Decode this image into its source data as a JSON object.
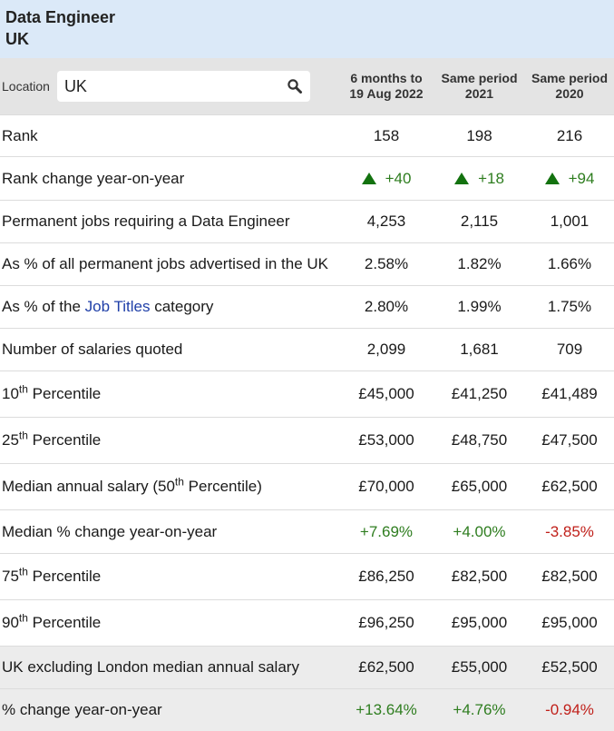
{
  "header": {
    "title": "Data Engineer",
    "subtitle": "UK"
  },
  "location": {
    "label": "Location",
    "value": "UK",
    "icon": "search-icon"
  },
  "columns": [
    {
      "line1": "6 months to",
      "line2": "19 Aug 2022"
    },
    {
      "line1": "Same period",
      "line2": "2021"
    },
    {
      "line1": "Same period",
      "line2": "2020"
    }
  ],
  "rows": {
    "rank": {
      "label": "Rank",
      "values": [
        "158",
        "198",
        "216"
      ]
    },
    "rank_change": {
      "label": "Rank change year-on-year",
      "values": [
        "+40",
        "+18",
        "+94"
      ]
    },
    "perm_jobs": {
      "label": "Permanent jobs requiring a Data Engineer",
      "values": [
        "4,253",
        "2,115",
        "1,001"
      ]
    },
    "pct_all": {
      "label": "As % of all permanent jobs advertised in the UK",
      "values": [
        "2.58%",
        "1.82%",
        "1.66%"
      ]
    },
    "pct_category": {
      "prefix": "As % of the ",
      "link": "Job Titles",
      "suffix": " category",
      "values": [
        "2.80%",
        "1.99%",
        "1.75%"
      ]
    },
    "num_salaries": {
      "label": "Number of salaries quoted",
      "values": [
        "2,099",
        "1,681",
        "709"
      ]
    },
    "p10": {
      "num": "10",
      "sup": "th",
      "text": " Percentile",
      "values": [
        "£45,000",
        "£41,250",
        "£41,489"
      ]
    },
    "p25": {
      "num": "25",
      "sup": "th",
      "text": " Percentile",
      "values": [
        "£53,000",
        "£48,750",
        "£47,500"
      ]
    },
    "median": {
      "prefix": "Median annual salary (50",
      "sup": "th",
      "suffix": " Percentile)",
      "values": [
        "£70,000",
        "£65,000",
        "£62,500"
      ]
    },
    "median_change": {
      "label": "Median % change year-on-year",
      "values": [
        "+7.69%",
        "+4.00%",
        "-3.85%"
      ]
    },
    "p75": {
      "num": "75",
      "sup": "th",
      "text": " Percentile",
      "values": [
        "£86,250",
        "£82,500",
        "£82,500"
      ]
    },
    "p90": {
      "num": "90",
      "sup": "th",
      "text": " Percentile",
      "values": [
        "£96,250",
        "£95,000",
        "£95,000"
      ]
    },
    "uk_ex_london": {
      "label": "UK excluding London median annual salary",
      "values": [
        "£62,500",
        "£55,000",
        "£52,500"
      ]
    },
    "pct_change": {
      "label": "% change year-on-year",
      "values": [
        "+13.64%",
        "+4.76%",
        "-0.94%"
      ]
    }
  },
  "colors": {
    "positive": "#2e7d1f",
    "negative": "#c0201a",
    "header_bg": "#dbe9f8",
    "table_head_bg": "#e4e4e4",
    "link": "#1f3fa8"
  }
}
